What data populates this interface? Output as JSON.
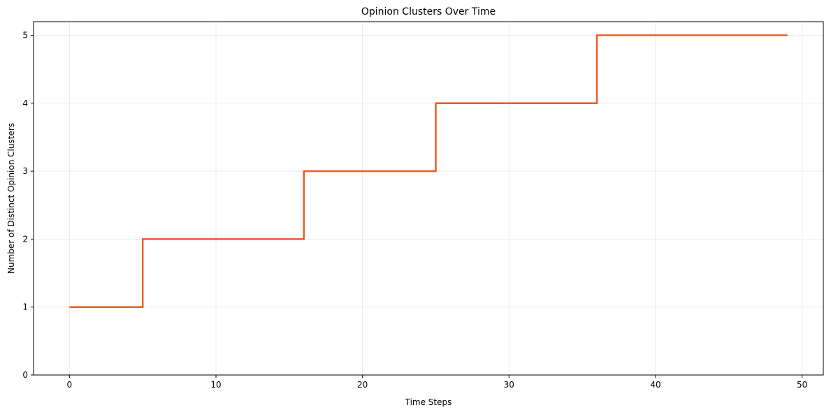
{
  "chart_data": {
    "type": "line",
    "step": "post",
    "title": "Opinion Clusters Over Time",
    "xlabel": "Time Steps",
    "ylabel": "Number of Distinct Opinion Clusters",
    "xlim": [
      -2.45,
      51.45
    ],
    "ylim": [
      0,
      5.2
    ],
    "xticks": [
      0,
      10,
      20,
      30,
      40,
      50
    ],
    "yticks": [
      0,
      1,
      2,
      3,
      4,
      5
    ],
    "grid": true,
    "series": [
      {
        "color": "#f05a28",
        "x": [
          0,
          5,
          16,
          25,
          36,
          49
        ],
        "y": [
          1,
          2,
          3,
          4,
          5,
          5
        ]
      }
    ]
  }
}
